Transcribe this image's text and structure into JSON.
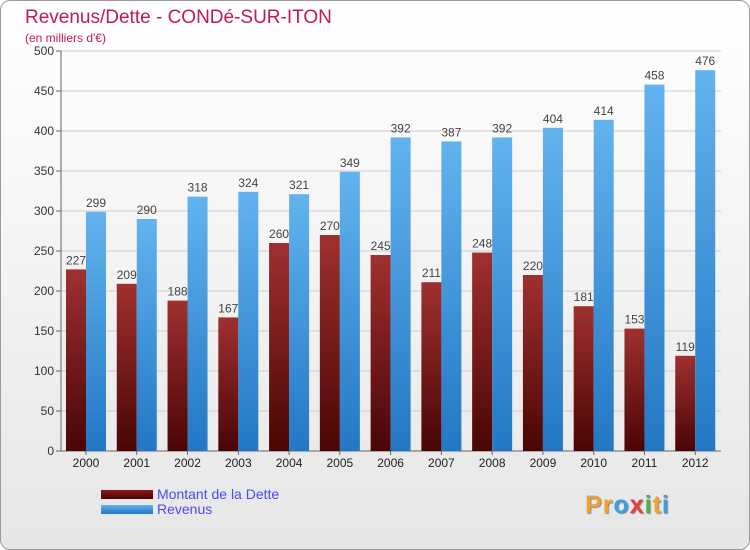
{
  "chart_data": {
    "type": "bar",
    "title": "Revenus/Dette - CONDé-SUR-ITON",
    "subtitle": "(en milliers d'€)",
    "categories": [
      "2000",
      "2001",
      "2002",
      "2003",
      "2004",
      "2005",
      "2006",
      "2007",
      "2008",
      "2009",
      "2010",
      "2011",
      "2012"
    ],
    "series": [
      {
        "name": "Montant de la Dette",
        "color": "#8b1a1a",
        "values": [
          227,
          209,
          188,
          167,
          260,
          270,
          245,
          211,
          248,
          220,
          181,
          153,
          119
        ]
      },
      {
        "name": "Revenus",
        "color": "#3f97df",
        "values": [
          299,
          290,
          318,
          324,
          321,
          349,
          392,
          387,
          392,
          404,
          414,
          458,
          476
        ]
      }
    ],
    "ylim": [
      0,
      500
    ],
    "yticks": [
      0,
      50,
      100,
      150,
      200,
      250,
      300,
      350,
      400,
      450,
      500
    ],
    "grid": true,
    "legend": "bottom-left"
  },
  "brand": {
    "letters": [
      "P",
      "r",
      "o",
      "x",
      "i",
      "t",
      "i"
    ],
    "colors": [
      "#f2a32c",
      "#f2a32c",
      "#3aa0e0",
      "#e04040",
      "#4cae4c",
      "#f2a32c",
      "#3aa0e0"
    ]
  }
}
